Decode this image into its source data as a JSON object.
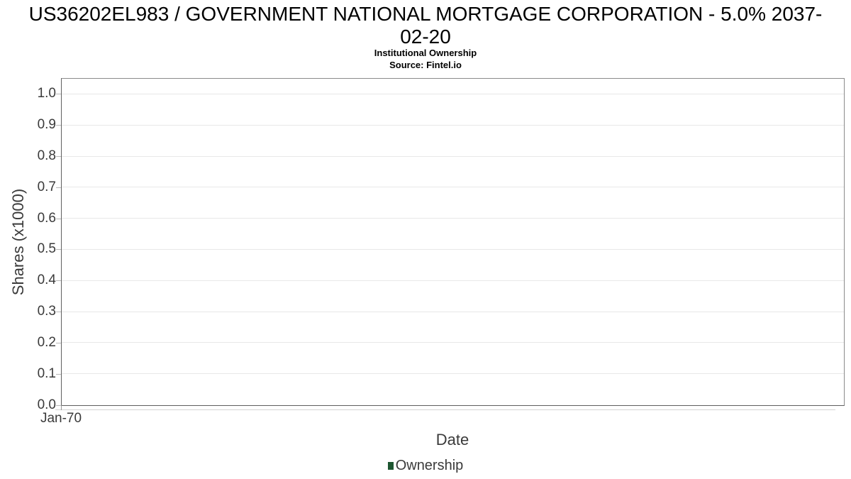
{
  "header": {
    "title_line1": "US36202EL983 / GOVERNMENT NATIONAL MORTGAGE CORPORATION - 5.0% 2037-",
    "title_line2": "02-20",
    "subtitle": "Institutional Ownership",
    "source": "Source: Fintel.io"
  },
  "chart_data": {
    "type": "line",
    "title": "US36202EL983 / GOVERNMENT NATIONAL MORTGAGE CORPORATION - 5.0% 2037-02-20",
    "subtitle": "Institutional Ownership",
    "source": "Source: Fintel.io",
    "xlabel": "Date",
    "ylabel": "Shares (x1000)",
    "ylim": [
      0,
      1.05
    ],
    "yticks": [
      "0.0",
      "0.1",
      "0.2",
      "0.3",
      "0.4",
      "0.5",
      "0.6",
      "0.7",
      "0.8",
      "0.9",
      "1.0"
    ],
    "xticks": [
      "Jan-70"
    ],
    "grid": true,
    "legend_position": "bottom-center",
    "legend": [
      {
        "label": "Ownership",
        "color": "#1e5631"
      }
    ],
    "series": [
      {
        "name": "Ownership",
        "x": [],
        "y": []
      }
    ]
  },
  "colors": {
    "legend_marker_green": "#1e5631",
    "gridline": "#e8e8e8",
    "axis_border": "#8a8a8a",
    "tick_text": "#3a3a3a",
    "title_text": "#000000"
  }
}
